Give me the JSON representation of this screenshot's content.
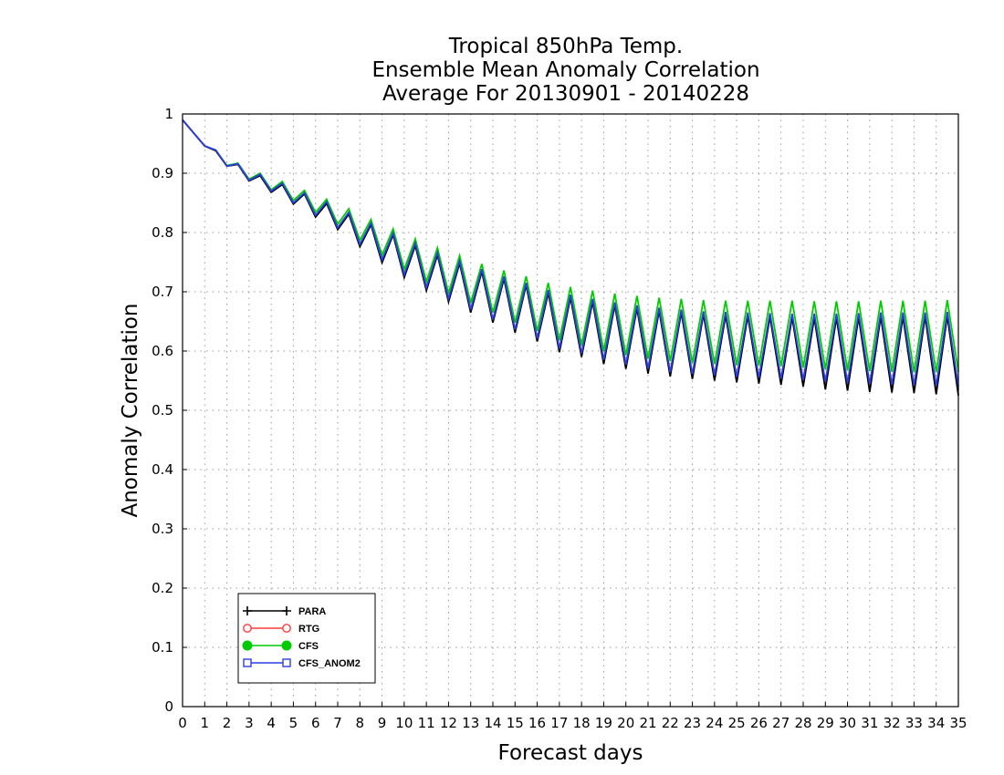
{
  "chart_data": {
    "type": "line",
    "title_lines": [
      "Tropical 850hPa Temp.",
      "Ensemble Mean Anomaly Correlation",
      "Average For 20130901 - 20140228"
    ],
    "xlabel": "Forecast days",
    "ylabel": "Anomaly Correlation",
    "xlim": [
      0,
      35
    ],
    "ylim": [
      0,
      1
    ],
    "x_ticks": [
      "0",
      "1",
      "2",
      "3",
      "4",
      "5",
      "6",
      "7",
      "8",
      "9",
      "10",
      "11",
      "12",
      "13",
      "14",
      "15",
      "16",
      "17",
      "18",
      "19",
      "20",
      "21",
      "22",
      "23",
      "24",
      "25",
      "26",
      "27",
      "28",
      "29",
      "30",
      "31",
      "32",
      "33",
      "34",
      "35"
    ],
    "y_ticks": [
      "0",
      "0.1",
      "0.2",
      "0.3",
      "0.4",
      "0.5",
      "0.6",
      "0.7",
      "0.8",
      "0.9",
      "1"
    ],
    "grid": true,
    "legend_position": "bottom-left",
    "x": [
      0,
      0.5,
      1,
      1.5,
      2,
      2.5,
      3,
      3.5,
      4,
      4.5,
      5,
      5.5,
      6,
      6.5,
      7,
      7.5,
      8,
      8.5,
      9,
      9.5,
      10,
      10.5,
      11,
      11.5,
      12,
      12.5,
      13,
      13.5,
      14,
      14.5,
      15,
      15.5,
      16,
      16.5,
      17,
      17.5,
      18,
      18.5,
      19,
      19.5,
      20,
      20.5,
      21,
      21.5,
      22,
      22.5,
      23,
      23.5,
      24,
      24.5,
      25,
      25.5,
      26,
      26.5,
      27,
      27.5,
      28,
      28.5,
      29,
      29.5,
      30,
      30.5,
      31,
      31.5,
      32,
      32.5,
      33,
      33.5,
      34,
      34.5,
      35
    ],
    "series": [
      {
        "name": "PARA",
        "color": "#000000",
        "marker": "plus",
        "values": [
          0.99,
          0.968,
          0.946,
          0.938,
          0.912,
          0.915,
          0.887,
          0.896,
          0.868,
          0.881,
          0.848,
          0.865,
          0.826,
          0.849,
          0.805,
          0.831,
          0.776,
          0.813,
          0.749,
          0.796,
          0.724,
          0.778,
          0.702,
          0.762,
          0.683,
          0.748,
          0.665,
          0.734,
          0.648,
          0.722,
          0.631,
          0.711,
          0.616,
          0.698,
          0.598,
          0.69,
          0.59,
          0.683,
          0.578,
          0.677,
          0.57,
          0.672,
          0.562,
          0.668,
          0.557,
          0.665,
          0.553,
          0.662,
          0.55,
          0.66,
          0.547,
          0.659,
          0.545,
          0.658,
          0.543,
          0.657,
          0.54,
          0.656,
          0.535,
          0.656,
          0.533,
          0.657,
          0.531,
          0.658,
          0.53,
          0.658,
          0.529,
          0.658,
          0.527,
          0.659,
          0.525
        ]
      },
      {
        "name": "RTG",
        "color": "#ff3b3b",
        "marker": "open-circle",
        "values": [
          0.99,
          0.968,
          0.946,
          0.938,
          0.912,
          0.915,
          0.888,
          0.897,
          0.869,
          0.882,
          0.849,
          0.866,
          0.828,
          0.851,
          0.807,
          0.833,
          0.779,
          0.815,
          0.753,
          0.798,
          0.728,
          0.781,
          0.706,
          0.765,
          0.687,
          0.751,
          0.669,
          0.737,
          0.652,
          0.725,
          0.635,
          0.714,
          0.62,
          0.702,
          0.603,
          0.694,
          0.595,
          0.687,
          0.583,
          0.681,
          0.575,
          0.676,
          0.568,
          0.672,
          0.563,
          0.669,
          0.559,
          0.666,
          0.557,
          0.664,
          0.554,
          0.663,
          0.552,
          0.662,
          0.55,
          0.661,
          0.548,
          0.66,
          0.544,
          0.66,
          0.542,
          0.661,
          0.54,
          0.662,
          0.539,
          0.662,
          0.538,
          0.662,
          0.537,
          0.663,
          0.535
        ]
      },
      {
        "name": "CFS",
        "color": "#00cc00",
        "marker": "filled-circle",
        "values": [
          0.99,
          0.968,
          0.946,
          0.939,
          0.913,
          0.917,
          0.89,
          0.9,
          0.872,
          0.886,
          0.854,
          0.871,
          0.834,
          0.856,
          0.814,
          0.84,
          0.787,
          0.822,
          0.762,
          0.806,
          0.738,
          0.789,
          0.717,
          0.774,
          0.698,
          0.761,
          0.681,
          0.747,
          0.665,
          0.736,
          0.648,
          0.726,
          0.634,
          0.715,
          0.618,
          0.708,
          0.61,
          0.702,
          0.6,
          0.697,
          0.593,
          0.693,
          0.587,
          0.69,
          0.583,
          0.688,
          0.58,
          0.686,
          0.578,
          0.685,
          0.576,
          0.685,
          0.575,
          0.685,
          0.574,
          0.685,
          0.572,
          0.684,
          0.569,
          0.684,
          0.567,
          0.684,
          0.566,
          0.685,
          0.565,
          0.685,
          0.564,
          0.685,
          0.564,
          0.686,
          0.565
        ]
      },
      {
        "name": "CFS_ANOM2",
        "color": "#2a3fe0",
        "marker": "open-square",
        "values": [
          0.99,
          0.968,
          0.946,
          0.939,
          0.912,
          0.916,
          0.888,
          0.898,
          0.87,
          0.883,
          0.85,
          0.867,
          0.829,
          0.852,
          0.808,
          0.834,
          0.78,
          0.816,
          0.754,
          0.799,
          0.729,
          0.782,
          0.707,
          0.766,
          0.688,
          0.752,
          0.67,
          0.738,
          0.653,
          0.726,
          0.636,
          0.715,
          0.621,
          0.703,
          0.604,
          0.695,
          0.596,
          0.688,
          0.585,
          0.682,
          0.577,
          0.677,
          0.57,
          0.673,
          0.564,
          0.67,
          0.561,
          0.667,
          0.559,
          0.666,
          0.556,
          0.665,
          0.555,
          0.664,
          0.553,
          0.663,
          0.551,
          0.663,
          0.548,
          0.663,
          0.546,
          0.664,
          0.544,
          0.665,
          0.543,
          0.665,
          0.542,
          0.665,
          0.541,
          0.666,
          0.54
        ]
      }
    ]
  }
}
